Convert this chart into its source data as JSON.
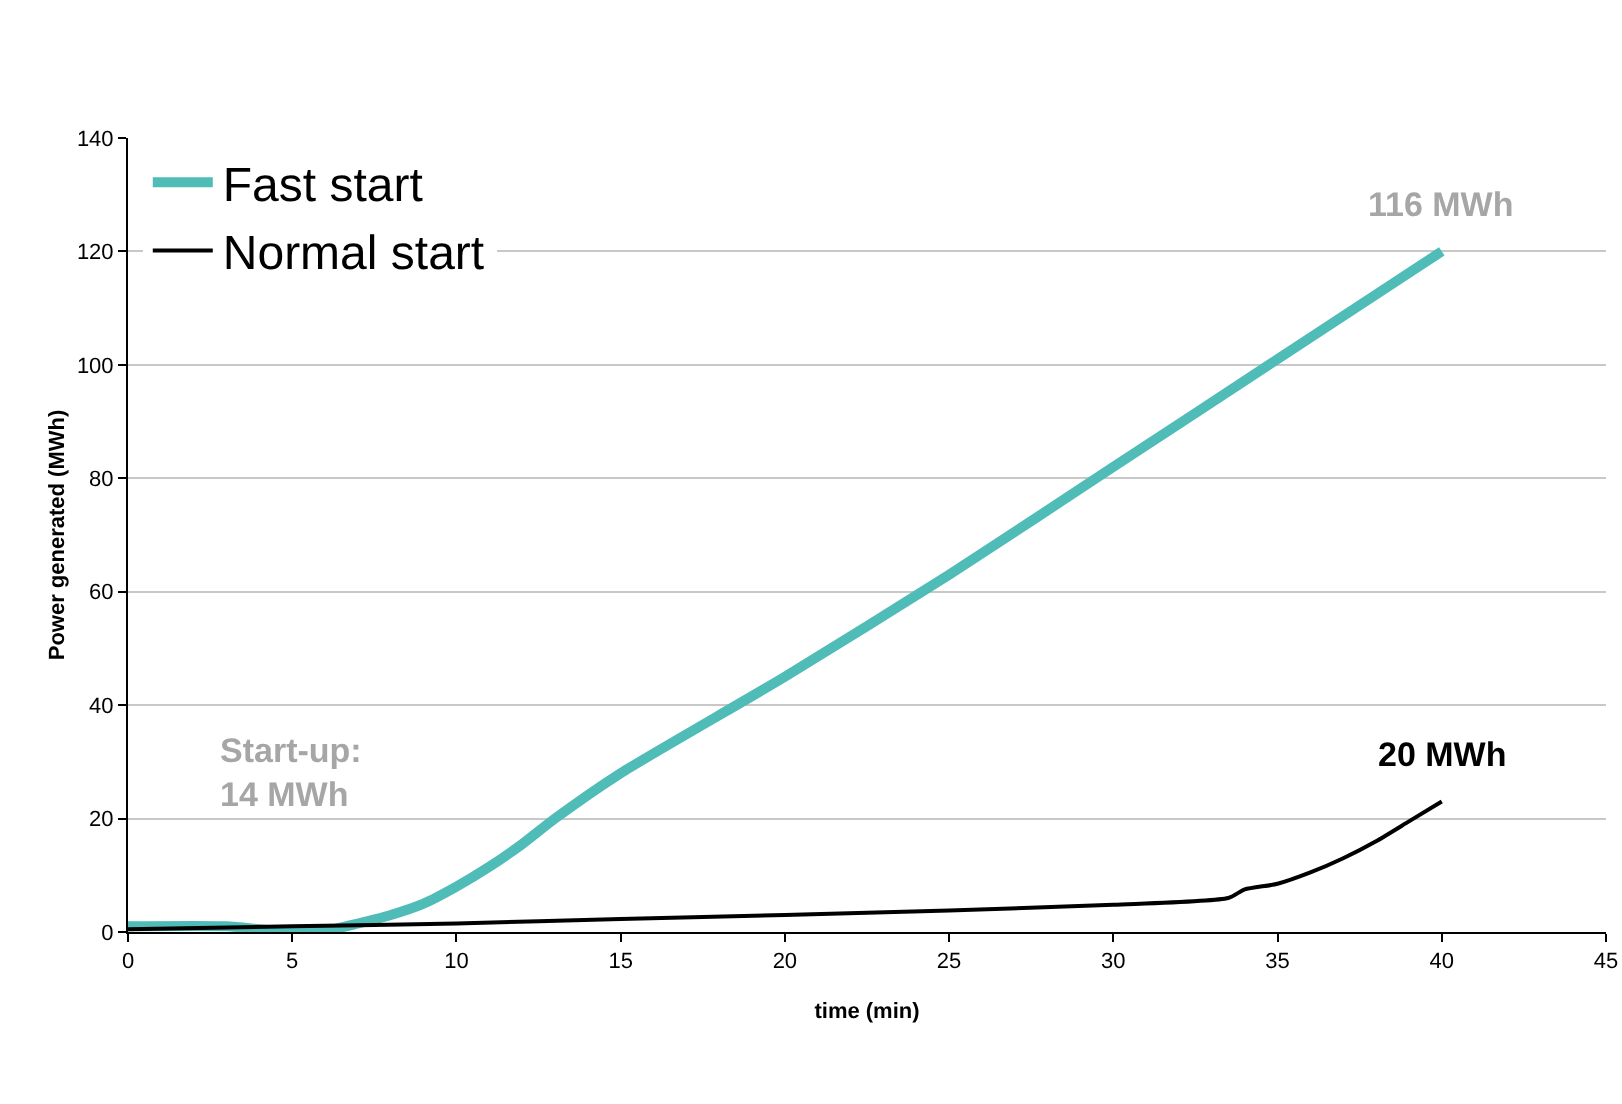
{
  "chart_data": {
    "type": "line",
    "xlabel": "time (min)",
    "ylabel": "Power generated (MWh)",
    "xlim": [
      0,
      45
    ],
    "xticks": [
      0,
      5,
      10,
      15,
      20,
      25,
      30,
      35,
      40,
      45
    ],
    "ylim": [
      0,
      140
    ],
    "yticks": [
      0,
      20,
      40,
      60,
      80,
      100,
      120,
      140
    ],
    "grid": "y",
    "legend": "top left",
    "marker": "none",
    "line_style": "solid",
    "series": [
      {
        "name": "Fast start",
        "color": "#4fbcb8",
        "x": [
          0,
          3,
          4,
          5,
          6,
          7,
          8,
          9,
          10,
          11,
          12,
          13,
          15,
          20,
          25,
          30,
          35,
          40
        ],
        "values": [
          1,
          1,
          0.5,
          0,
          0.2,
          1.5,
          3,
          5,
          8,
          11.5,
          15.5,
          20,
          28,
          45,
          63,
          82,
          101,
          120
        ]
      },
      {
        "name": "Normal start",
        "color": "#000000",
        "x": [
          0,
          5,
          10,
          15,
          20,
          25,
          30,
          33.5,
          34,
          35,
          36,
          37,
          38,
          39,
          40
        ],
        "values": [
          0.5,
          1,
          1.5,
          2.3,
          3,
          3.8,
          4.8,
          6,
          7.5,
          8.5,
          10.5,
          13,
          16,
          19.5,
          23
        ]
      }
    ],
    "annotations": [
      {
        "text": "116 MWh",
        "x": 40,
        "y": 120
      },
      {
        "text": "20 MWh",
        "x": 40,
        "y": 23
      },
      "Start-up:\n14 MWh"
    ]
  }
}
